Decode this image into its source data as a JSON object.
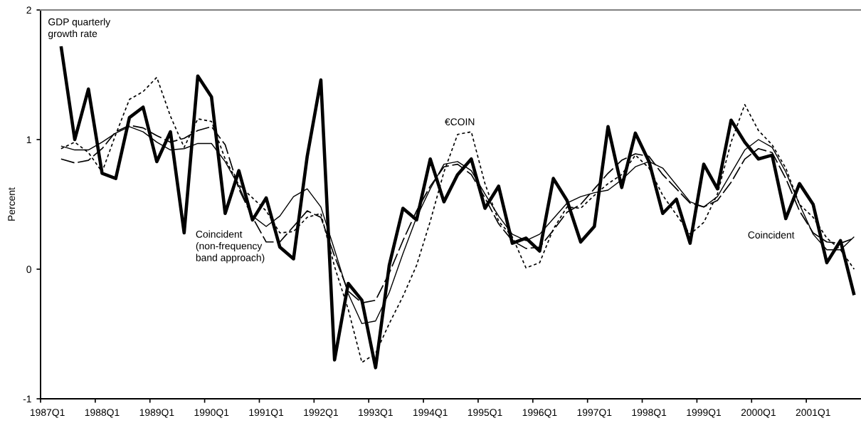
{
  "chart_data": {
    "type": "line",
    "ylabel": "Percent",
    "categories": [
      "1987Q1",
      null,
      null,
      null,
      "1988Q1",
      null,
      null,
      null,
      "1989Q1",
      null,
      null,
      null,
      "1990Q1",
      null,
      null,
      null,
      "1991Q1",
      null,
      null,
      null,
      "1992Q1",
      null,
      null,
      null,
      "1993Q1",
      null,
      null,
      null,
      "1994Q1",
      null,
      null,
      null,
      "1995Q1",
      null,
      null,
      null,
      "1996Q1",
      null,
      null,
      null,
      "1997Q1",
      null,
      null,
      null,
      "1998Q1",
      null,
      null,
      null,
      "1999Q1",
      null,
      null,
      null,
      "2000Q1",
      null,
      null,
      null,
      "2001Q1",
      null,
      null,
      null
    ],
    "ylim": [
      -1,
      2
    ],
    "yticks": [
      -1,
      0,
      1,
      2
    ],
    "grid": false,
    "legend": false,
    "series": [
      {
        "name": "GDP quarterly\ngrowth rate",
        "color": "#000000",
        "line_style": "solid",
        "values": [
          null,
          1.72,
          1.0,
          1.39,
          0.74,
          0.7,
          1.17,
          1.25,
          0.83,
          1.06,
          0.28,
          1.49,
          1.33,
          0.43,
          0.76,
          0.38,
          0.55,
          0.17,
          0.08,
          0.87,
          1.46,
          -0.7,
          -0.11,
          -0.24,
          -0.76,
          0.03,
          0.47,
          0.38,
          0.85,
          0.52,
          0.73,
          0.85,
          0.47,
          0.64,
          0.2,
          0.24,
          0.14,
          0.7,
          0.53,
          0.21,
          0.33,
          1.1,
          0.63,
          1.05,
          0.83,
          0.43,
          0.54,
          0.2,
          0.81,
          0.62,
          1.15,
          0.98,
          0.85,
          0.88,
          0.39,
          0.66,
          0.5,
          0.05,
          0.22,
          -0.2
        ]
      },
      {
        "name": "€COIN",
        "color": "#000000",
        "line_style": "dotted",
        "values": [
          null,
          0.93,
          0.98,
          0.9,
          0.75,
          1.04,
          1.31,
          1.37,
          1.48,
          1.18,
          0.94,
          1.16,
          1.14,
          0.85,
          0.65,
          0.55,
          0.45,
          0.28,
          0.29,
          0.4,
          0.43,
          0.02,
          -0.31,
          -0.72,
          -0.65,
          -0.42,
          -0.21,
          0.03,
          0.37,
          0.75,
          1.04,
          1.06,
          0.66,
          0.37,
          0.25,
          0.01,
          0.05,
          0.31,
          0.48,
          0.47,
          0.57,
          0.66,
          0.73,
          0.88,
          0.78,
          0.57,
          0.42,
          0.27,
          0.36,
          0.58,
          0.98,
          1.27,
          1.07,
          0.96,
          0.78,
          0.5,
          0.4,
          0.24,
          0.15,
          0.0
        ]
      },
      {
        "name": "Coincident\n(non-frequency\nband approach)",
        "color": "#000000",
        "line_style": "dashed",
        "values": [
          null,
          0.85,
          0.82,
          0.84,
          0.93,
          1.06,
          1.11,
          1.09,
          1.03,
          0.98,
          1.01,
          1.07,
          1.1,
          0.96,
          0.62,
          0.4,
          0.21,
          0.21,
          0.33,
          0.45,
          0.4,
          0.1,
          -0.17,
          -0.26,
          -0.24,
          -0.03,
          0.22,
          0.45,
          0.64,
          0.79,
          0.81,
          0.73,
          0.55,
          0.35,
          0.22,
          0.16,
          0.17,
          0.3,
          0.44,
          0.5,
          0.62,
          0.74,
          0.84,
          0.89,
          0.87,
          0.73,
          0.62,
          0.51,
          0.48,
          0.53,
          0.67,
          0.85,
          0.93,
          0.9,
          0.7,
          0.45,
          0.28,
          0.21,
          0.2,
          0.24
        ]
      },
      {
        "name": "Coincident",
        "color": "#000000",
        "line_style": "solid",
        "values": [
          null,
          0.95,
          0.92,
          0.92,
          0.98,
          1.05,
          1.1,
          1.06,
          0.98,
          0.92,
          0.93,
          0.97,
          0.97,
          0.83,
          0.64,
          0.41,
          0.33,
          0.41,
          0.56,
          0.62,
          0.48,
          0.15,
          -0.19,
          -0.42,
          -0.4,
          -0.18,
          0.12,
          0.4,
          0.62,
          0.81,
          0.83,
          0.76,
          0.58,
          0.41,
          0.27,
          0.22,
          0.27,
          0.39,
          0.51,
          0.56,
          0.59,
          0.61,
          0.69,
          0.79,
          0.83,
          0.78,
          0.65,
          0.52,
          0.48,
          0.56,
          0.74,
          0.92,
          1.0,
          0.94,
          0.75,
          0.5,
          0.27,
          0.15,
          0.15,
          0.25
        ]
      }
    ]
  }
}
